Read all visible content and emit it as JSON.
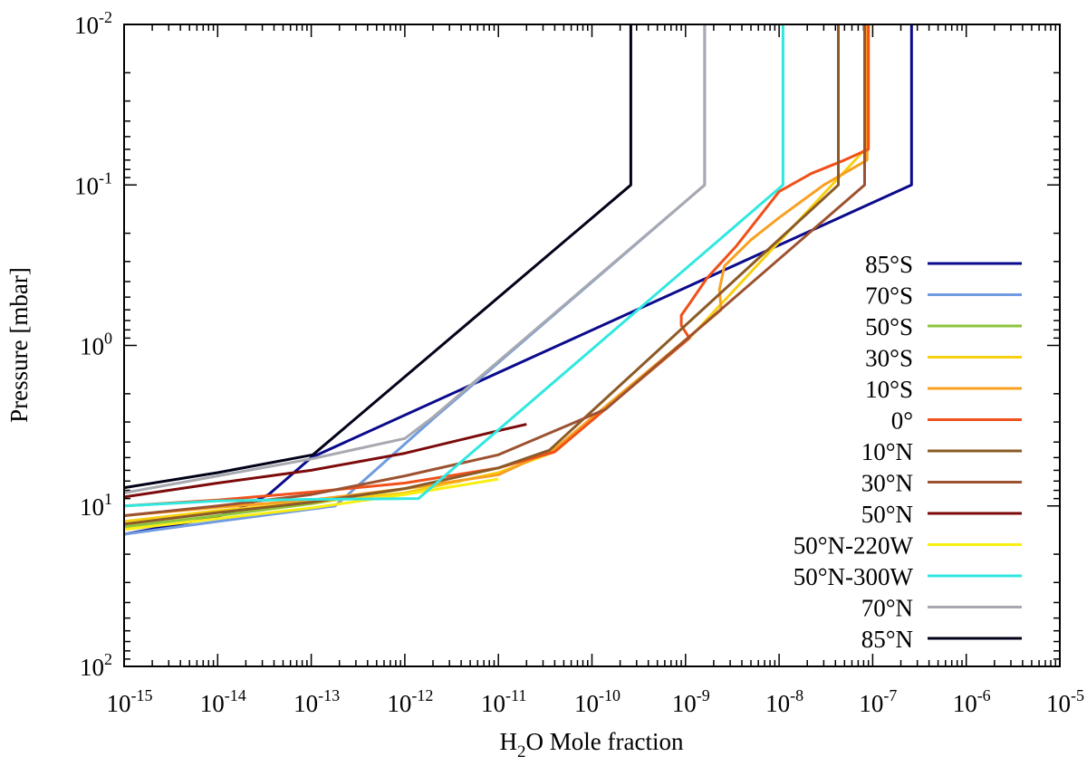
{
  "chart_data": {
    "type": "line",
    "xscale": "log",
    "yscale": "log",
    "y_inverted": true,
    "xlabel": {
      "prefix": "H",
      "subscript": "2",
      "suffix": "O Mole fraction"
    },
    "ylabel": "Pressure [mbar]",
    "xlim": [
      1e-15,
      1e-05
    ],
    "ylim": [
      100,
      0.01
    ],
    "x_ticks": [
      {
        "base": "10",
        "exp": "-15",
        "value": 1e-15
      },
      {
        "base": "10",
        "exp": "-14",
        "value": 1e-14
      },
      {
        "base": "10",
        "exp": "-13",
        "value": 1e-13
      },
      {
        "base": "10",
        "exp": "-12",
        "value": 1e-12
      },
      {
        "base": "10",
        "exp": "-11",
        "value": 1e-11
      },
      {
        "base": "10",
        "exp": "-10",
        "value": 1e-10
      },
      {
        "base": "10",
        "exp": "-9",
        "value": 1e-09
      },
      {
        "base": "10",
        "exp": "-8",
        "value": 1e-08
      },
      {
        "base": "10",
        "exp": "-7",
        "value": 1e-07
      },
      {
        "base": "10",
        "exp": "-6",
        "value": 1e-06
      },
      {
        "base": "10",
        "exp": "-5",
        "value": 1e-05
      }
    ],
    "y_ticks": [
      {
        "base": "10",
        "exp": "-2",
        "value": 0.01
      },
      {
        "base": "10",
        "exp": "-1",
        "value": 0.1
      },
      {
        "base": "10",
        "exp": "0",
        "value": 1
      },
      {
        "base": "10",
        "exp": "1",
        "value": 10
      },
      {
        "base": "10",
        "exp": "2",
        "value": 100
      }
    ],
    "legend_position": "right",
    "series": [
      {
        "name": "85°S",
        "color": "#0a0a8c",
        "x": [
          1e-15,
          8e-15,
          1.4e-14,
          3.5e-14,
          1e-13,
          2.6e-07,
          2.6e-07
        ],
        "y": [
          15,
          12,
          11,
          8.5,
          5,
          0.1,
          0.01
        ]
      },
      {
        "name": "70°S",
        "color": "#6f9be0",
        "x": [
          1e-15,
          1e-14,
          1.8e-13,
          2.1e-12,
          1.6e-09,
          1.6e-09
        ],
        "y": [
          15,
          12.5,
          10,
          2.8,
          0.1,
          0.01
        ]
      },
      {
        "name": "50°S",
        "color": "#8dc43d",
        "x": [
          1e-15,
          1e-14,
          1e-13,
          1e-12,
          4e-12
        ],
        "y": [
          13.5,
          11.5,
          9.7,
          7.8,
          7
        ]
      },
      {
        "name": "30°S",
        "color": "#f8d010",
        "x": [
          1e-15,
          1e-14,
          1e-13,
          1e-12,
          1e-11,
          4e-11,
          1.1e-09,
          9e-08,
          9e-08
        ],
        "y": [
          12.5,
          10.7,
          9.5,
          8.3,
          6.2,
          4.6,
          0.9,
          0.057,
          0.01
        ]
      },
      {
        "name": "10°S",
        "color": "#f8a020",
        "x": [
          1e-15,
          1e-14,
          1e-13,
          1e-12,
          1e-11,
          4e-11,
          1.1e-09,
          2.4e-09,
          2.3e-09,
          2.6e-09,
          5e-09,
          1e-08,
          3e-08,
          8.7e-08,
          8.7e-08
        ],
        "y": [
          11.5,
          10.2,
          9.2,
          7.8,
          6.4,
          4.4,
          0.88,
          0.6,
          0.45,
          0.32,
          0.22,
          0.16,
          0.1,
          0.07,
          0.01
        ]
      },
      {
        "name": "0°",
        "color": "#f0501a",
        "x": [
          1e-15,
          1e-14,
          1e-13,
          1e-12,
          1e-11,
          4e-11,
          1.1e-09,
          9e-10,
          9e-10,
          1.1e-09,
          1.7e-09,
          3.5e-09,
          1e-08,
          2.2e-08,
          5e-08,
          9e-08,
          9e-08
        ],
        "y": [
          10,
          9.2,
          8.2,
          7.2,
          5.8,
          4.6,
          0.9,
          0.75,
          0.65,
          0.55,
          0.38,
          0.24,
          0.11,
          0.085,
          0.07,
          0.06,
          0.01
        ]
      },
      {
        "name": "10°N",
        "color": "#8b5a26",
        "x": [
          1e-15,
          1e-14,
          1e-13,
          1e-12,
          1e-11,
          3.5e-11,
          4.3e-08,
          4.3e-08
        ],
        "y": [
          13,
          11,
          9.5,
          7.8,
          5.8,
          4.5,
          0.1,
          0.01
        ]
      },
      {
        "name": "30°N",
        "color": "#9c5230",
        "x": [
          1e-15,
          1e-14,
          1e-13,
          1e-12,
          1e-11,
          1.4e-10,
          8.2e-08,
          8.2e-08
        ],
        "y": [
          11.5,
          10,
          8.5,
          6.5,
          4.8,
          2.5,
          0.1,
          0.01
        ]
      },
      {
        "name": "50°N",
        "color": "#7c0a0a",
        "x": [
          1e-15,
          1e-14,
          1e-13,
          1e-12,
          1e-11,
          2e-11
        ],
        "y": [
          8.8,
          7.2,
          6,
          4.7,
          3.4,
          3.1
        ]
      },
      {
        "name": "50°N-220W",
        "color": "#f8ee10",
        "x": [
          1e-15,
          1e-14,
          1e-13,
          1e-12,
          1e-11
        ],
        "y": [
          14,
          12,
          10.3,
          8.5,
          6.8
        ]
      },
      {
        "name": "50°N-300W",
        "color": "#30e8e0",
        "x": [
          1e-15,
          1e-14,
          1e-13,
          1.4e-12,
          1.1e-08,
          1.1e-08
        ],
        "y": [
          10,
          9.3,
          9.1,
          9,
          0.1,
          0.01
        ]
      },
      {
        "name": "70°N",
        "color": "#a8a8b0",
        "x": [
          1e-15,
          1e-14,
          1e-13,
          1e-12,
          2e-12,
          1.6e-09,
          1.6e-09
        ],
        "y": [
          8.3,
          6.5,
          5.1,
          3.8,
          2.8,
          0.1,
          0.01
        ]
      },
      {
        "name": "85°N",
        "color": "#000018",
        "x": [
          1e-15,
          1e-14,
          1.04e-13,
          2.6e-10,
          2.6e-10
        ],
        "y": [
          7.7,
          6.2,
          4.8,
          0.1,
          0.01
        ]
      }
    ]
  }
}
